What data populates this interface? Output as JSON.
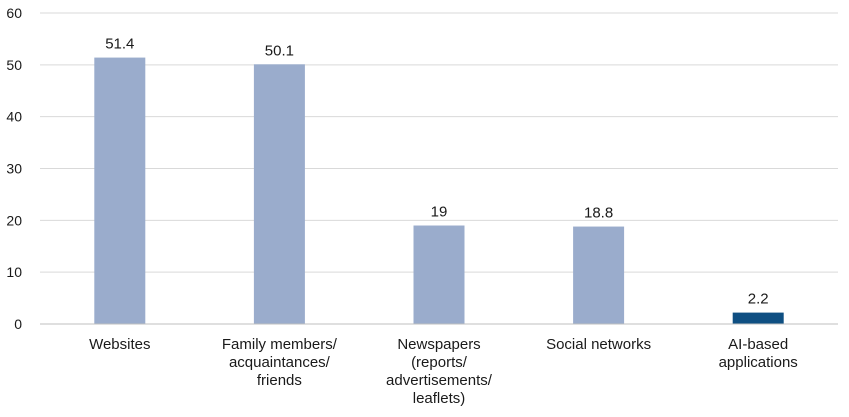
{
  "chart_data": {
    "type": "bar",
    "categories": [
      "Websites",
      "Family members/ acquaintances/ friends",
      "Newspapers (reports/ advertisements/ leaflets)",
      "Social networks",
      "AI-based applications"
    ],
    "category_lines": [
      [
        "Websites"
      ],
      [
        "Family members/",
        "acquaintances/",
        "friends"
      ],
      [
        "Newspapers",
        "(reports/",
        "advertisements/",
        "leaflets)"
      ],
      [
        "Social networks"
      ],
      [
        "AI-based",
        "applications"
      ]
    ],
    "values": [
      51.4,
      50.1,
      19,
      18.8,
      2.2
    ],
    "value_labels": [
      "51.4",
      "50.1",
      "19",
      "18.8",
      "2.2"
    ],
    "bar_colors": [
      "#9aaccc",
      "#9aaccc",
      "#9aaccc",
      "#9aaccc",
      "#0f4f82"
    ],
    "ylim": [
      0,
      60
    ],
    "yticks": [
      0,
      10,
      20,
      30,
      40,
      50,
      60
    ],
    "grid": true,
    "legend": "none",
    "title": "",
    "xlabel": "",
    "ylabel": ""
  }
}
